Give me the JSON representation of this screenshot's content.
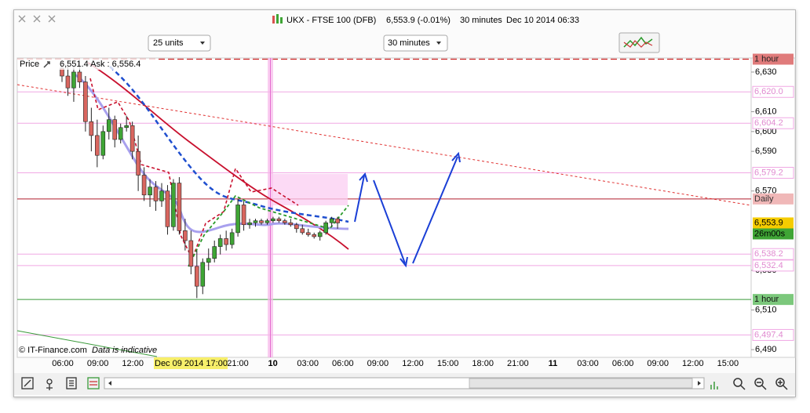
{
  "window": {
    "title": "UKX - FTSE 100 (DFB)",
    "quote": "6,553.9 (-0.01%)",
    "interval": "30 minutes",
    "timestamp": "Dec 10 2014 06:33"
  },
  "toolbar": {
    "units": "25 units",
    "interval": "30 minutes"
  },
  "chart": {
    "type": "candlestick",
    "price_label": "Price",
    "bid_ask": "6,551.4 Ask : 6,556.4",
    "copyright": "© IT-Finance.com",
    "disclaimer": "Data is indicative",
    "crosshair_label": "Dec 09 2014 17:00",
    "countdown": "26m00s",
    "ylim": [
      6486.5,
      6636.7
    ],
    "yticks": [
      {
        "value": 6630,
        "label": "6,630"
      },
      {
        "value": 6610,
        "label": "6,610"
      },
      {
        "value": 6600,
        "label": "6,600"
      },
      {
        "value": 6590,
        "label": "6,590"
      },
      {
        "value": 6570,
        "label": "6,570"
      },
      {
        "value": 6530,
        "label": "6,530"
      },
      {
        "value": 6510,
        "label": "6,510"
      },
      {
        "value": 6490,
        "label": "6,490"
      }
    ],
    "xticks": [
      "06:00",
      "09:00",
      "12:00",
      null,
      null,
      "21:00",
      "10",
      "03:00",
      "06:00",
      "09:00",
      "12:00",
      "15:00",
      "18:00",
      "21:00",
      "11",
      "03:00",
      "06:00",
      "09:00",
      "12:00",
      "15:00"
    ],
    "up_color": "#3fa535",
    "down_color": "#d9665f",
    "candles": [
      [
        6632,
        6636,
        6625,
        6628
      ],
      [
        6628,
        6636,
        6618,
        6622
      ],
      [
        6622,
        6633,
        6615,
        6630
      ],
      [
        6630,
        6636,
        6622,
        6625
      ],
      [
        6625,
        6628,
        6600,
        6605
      ],
      [
        6605,
        6612,
        6590,
        6598
      ],
      [
        6598,
        6606,
        6582,
        6588
      ],
      [
        6588,
        6603,
        6586,
        6600
      ],
      [
        6600,
        6612,
        6596,
        6606
      ],
      [
        6606,
        6608,
        6592,
        6596
      ],
      [
        6596,
        6604,
        6594,
        6602
      ],
      [
        6602,
        6608,
        6600,
        6603
      ],
      [
        6603,
        6605,
        6586,
        6590
      ],
      [
        6590,
        6598,
        6570,
        6578
      ],
      [
        6578,
        6582,
        6565,
        6568
      ],
      [
        6568,
        6576,
        6562,
        6572
      ],
      [
        6572,
        6575,
        6560,
        6565
      ],
      [
        6565,
        6574,
        6562,
        6570
      ],
      [
        6570,
        6573,
        6548,
        6552
      ],
      [
        6552,
        6576,
        6550,
        6574
      ],
      [
        6574,
        6577,
        6548,
        6550
      ],
      [
        6550,
        6556,
        6540,
        6545
      ],
      [
        6545,
        6550,
        6528,
        6532
      ],
      [
        6532,
        6540,
        6516,
        6522
      ],
      [
        6522,
        6536,
        6518,
        6534
      ],
      [
        6534,
        6541,
        6530,
        6536
      ],
      [
        6536,
        6545,
        6534,
        6542
      ],
      [
        6542,
        6548,
        6538,
        6546
      ],
      [
        6546,
        6550,
        6540,
        6543
      ],
      [
        6543,
        6551,
        6541,
        6549
      ],
      [
        6549,
        6566,
        6547,
        6563
      ],
      [
        6563,
        6565,
        6550,
        6553
      ],
      [
        6553,
        6556,
        6551,
        6554
      ],
      [
        6554,
        6556,
        6552,
        6555
      ],
      [
        6555,
        6556,
        6553,
        6554
      ],
      [
        6554,
        6556,
        6553,
        6555
      ],
      [
        6555,
        6557,
        6554,
        6556
      ],
      [
        6556,
        6557,
        6554,
        6555
      ],
      [
        6555,
        6556,
        6553,
        6554
      ],
      [
        6554,
        6556,
        6552,
        6553
      ],
      [
        6553,
        6554,
        6549,
        6551
      ],
      [
        6551,
        6553,
        6548,
        6549
      ],
      [
        6549,
        6551,
        6547,
        6548
      ],
      [
        6548,
        6549,
        6546,
        6547
      ],
      [
        6547,
        6550,
        6545,
        6549
      ],
      [
        6549,
        6555,
        6548,
        6554
      ],
      [
        6554,
        6557,
        6552,
        6556
      ],
      [
        6556,
        6557,
        6551,
        6553.9
      ]
    ],
    "price_tags": [
      {
        "label": "1 hour",
        "value": 6636.5,
        "color": "#e07b7b",
        "text_color": "#222222",
        "line": "#cc2222"
      },
      {
        "value": 6620.0,
        "label": "6,620.0",
        "color": "#ffffff",
        "text_color": "#e08ad0",
        "line": "#f0a8e4"
      },
      {
        "value": 6604.2,
        "label": "6,604.2",
        "color": "#ffffff",
        "text_color": "#e08ad0",
        "line": "#f0a8e4"
      },
      {
        "value": 6579.2,
        "label": "6,579.2",
        "color": "#ffffff",
        "text_color": "#e08ad0",
        "line": "#f0a8e4"
      },
      {
        "label": "Daily",
        "value": 6566,
        "color": "#f0b8b8",
        "text_color": "#333333",
        "line": "#b01c2c"
      },
      {
        "value": 6553.9,
        "label": "6,553.9",
        "color": "#f5cc00",
        "text_color": "#000000",
        "line": "none"
      },
      {
        "value": 6538.2,
        "label": "6,538.2",
        "color": "#ffffff",
        "text_color": "#e08ad0",
        "line": "#f0a8e4"
      },
      {
        "value": 6532.4,
        "label": "6,532.4",
        "color": "#ffffff",
        "text_color": "#e08ad0",
        "line": "#f0a8e4"
      },
      {
        "label": "1 hour",
        "value": 6515.3,
        "color": "#7cc87c",
        "text_color": "#111111",
        "line": "#3a9a3a"
      },
      {
        "value": 6497.4,
        "label": "6,497.4",
        "color": "#ffffff",
        "text_color": "#e08ad0",
        "line": "#f0a8e4"
      }
    ]
  }
}
